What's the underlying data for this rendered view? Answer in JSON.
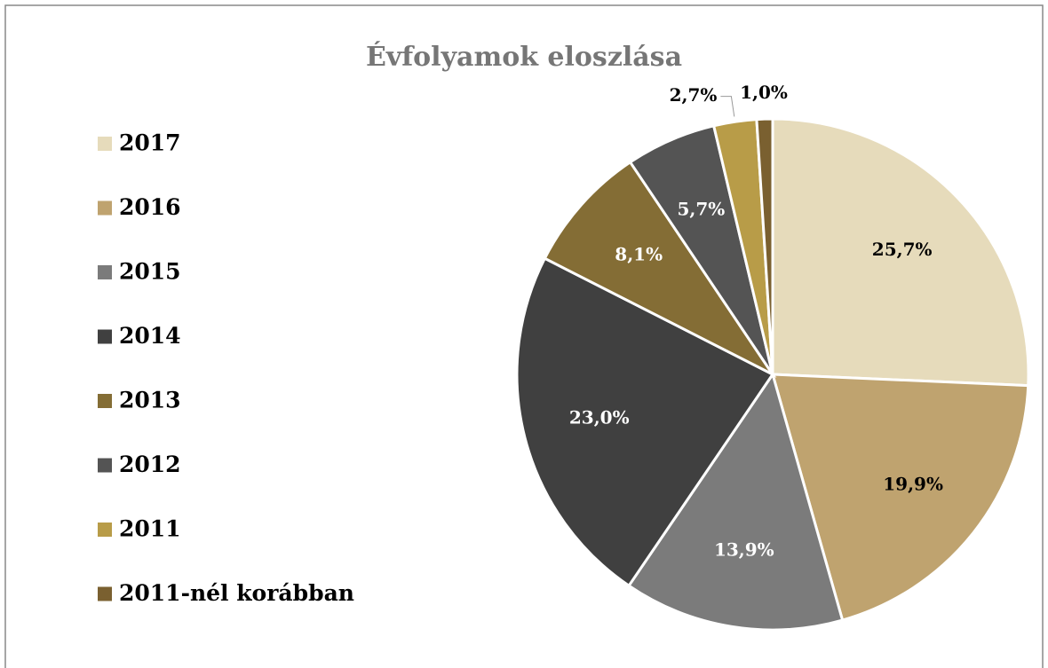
{
  "chart_data": {
    "type": "pie",
    "title": "Évfolyamok eloszlása",
    "categories": [
      "2017",
      "2016",
      "2015",
      "2014",
      "2013",
      "2012",
      "2011",
      "2011-nél korábban"
    ],
    "values": [
      25.7,
      19.9,
      13.9,
      23.0,
      8.1,
      5.7,
      2.7,
      1.0
    ],
    "value_labels": [
      "25,7%",
      "19,9%",
      "13,9%",
      "23,0%",
      "8,1%",
      "5,7%",
      "2,7%",
      "1,0%"
    ],
    "colors": [
      "#e6dbbb",
      "#bfa36f",
      "#7b7b7b",
      "#404040",
      "#846d35",
      "#545454",
      "#b89c48",
      "#7a6030"
    ],
    "legend": "left"
  }
}
